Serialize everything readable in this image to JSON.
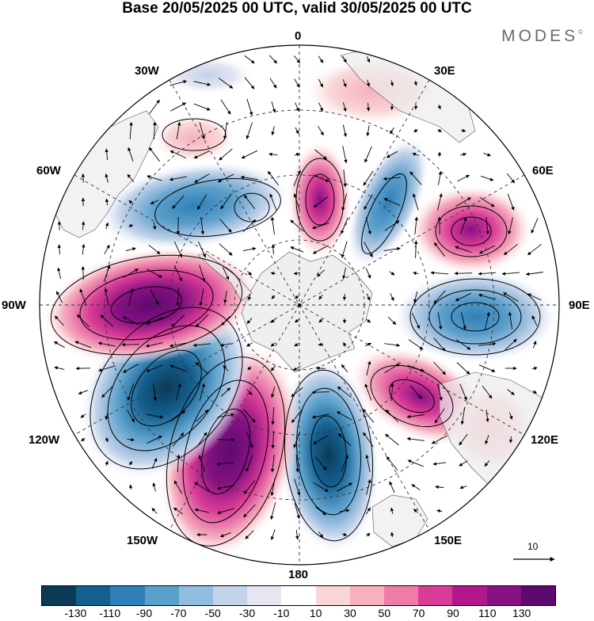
{
  "header": {
    "title": "Base 20/05/2025 00 UTC, valid 30/05/2025 00 UTC",
    "brand": "MODES",
    "brand_mark": "©"
  },
  "map": {
    "projection": "south-polar-stereographic",
    "longitude_labels": {
      "lon_0": "0",
      "lon_30e": "30E",
      "lon_60e": "60E",
      "lon_90e": "90E",
      "lon_120e": "120E",
      "lon_150e": "150E",
      "lon_180": "180",
      "lon_150w": "150W",
      "lon_120w": "120W",
      "lon_90w": "90W",
      "lon_60w": "60W",
      "lon_30w": "30W"
    },
    "reference_vector_label": "10",
    "land_color": "#ececec",
    "gridline_style": "dashed"
  },
  "colorbar": {
    "colors": [
      "#0b3a57",
      "#145f8f",
      "#2f80b6",
      "#5b9fcb",
      "#90bde0",
      "#c3d3ea",
      "#e6e5f2",
      "#ffffff",
      "#f9d6d8",
      "#f6b0be",
      "#f07aa8",
      "#d93c96",
      "#b3178c",
      "#861182",
      "#5c0a6e"
    ],
    "tick_labels": [
      "-130",
      "-110",
      "-90",
      "-70",
      "-50",
      "-30",
      "-10",
      "10",
      "30",
      "50",
      "70",
      "90",
      "110",
      "130"
    ]
  },
  "anomalies": [
    {
      "name": "anomaly-positive-0e",
      "value": 80
    },
    {
      "name": "anomaly-negative-30w",
      "value": -25
    },
    {
      "name": "anomaly-positive-20w",
      "value": 20
    },
    {
      "name": "anomaly-negative-40e",
      "value": -60
    },
    {
      "name": "anomaly-positive-60e",
      "value": 80
    },
    {
      "name": "anomaly-negative-90e",
      "value": -80
    },
    {
      "name": "anomaly-positive-120e",
      "value": 100
    },
    {
      "name": "anomaly-negative-165e",
      "value": -120
    },
    {
      "name": "anomaly-positive-150w",
      "value": 140
    },
    {
      "name": "anomaly-negative-120w",
      "value": -130
    },
    {
      "name": "anomaly-positive-90w",
      "value": 120
    },
    {
      "name": "anomaly-negative-60w",
      "value": -70
    }
  ]
}
